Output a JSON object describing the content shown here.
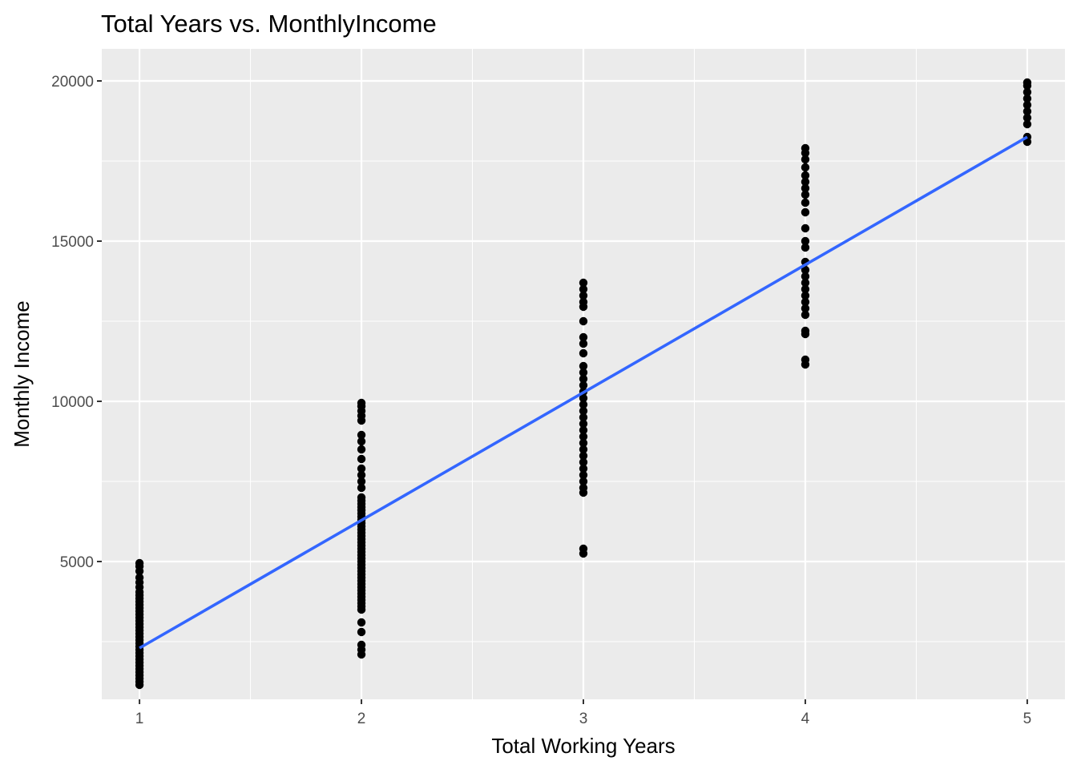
{
  "chart_data": {
    "type": "scatter",
    "title": "Total Years vs. MonthlyIncome",
    "xlabel": "Total Working Years",
    "ylabel": "Monthly Income",
    "xlim": [
      0.83,
      5.17
    ],
    "ylim": [
      700,
      21000
    ],
    "x_ticks": [
      1,
      2,
      3,
      4,
      5
    ],
    "x_tick_labels": [
      "1",
      "2",
      "3",
      "4",
      "5"
    ],
    "x_minor_ticks": [
      1.5,
      2.5,
      3.5,
      4.5
    ],
    "y_ticks": [
      5000,
      10000,
      15000,
      20000
    ],
    "y_tick_labels": [
      "5000",
      "10000",
      "15000",
      "20000"
    ],
    "y_minor_ticks": [
      2500,
      7500,
      12500,
      17500
    ],
    "grid": true,
    "panel_background": "#ebebeb",
    "grid_color": "#ffffff",
    "point_color": "#000000",
    "trend_color": "#3366ff",
    "points": [
      {
        "x": 1,
        "y": 1150
      },
      {
        "x": 1,
        "y": 1250
      },
      {
        "x": 1,
        "y": 1350
      },
      {
        "x": 1,
        "y": 1450
      },
      {
        "x": 1,
        "y": 1550
      },
      {
        "x": 1,
        "y": 1650
      },
      {
        "x": 1,
        "y": 1750
      },
      {
        "x": 1,
        "y": 1850
      },
      {
        "x": 1,
        "y": 1950
      },
      {
        "x": 1,
        "y": 2050
      },
      {
        "x": 1,
        "y": 2150
      },
      {
        "x": 1,
        "y": 2250
      },
      {
        "x": 1,
        "y": 2350
      },
      {
        "x": 1,
        "y": 2450
      },
      {
        "x": 1,
        "y": 2550
      },
      {
        "x": 1,
        "y": 2650
      },
      {
        "x": 1,
        "y": 2750
      },
      {
        "x": 1,
        "y": 2850
      },
      {
        "x": 1,
        "y": 2950
      },
      {
        "x": 1,
        "y": 3050
      },
      {
        "x": 1,
        "y": 3150
      },
      {
        "x": 1,
        "y": 3250
      },
      {
        "x": 1,
        "y": 3350
      },
      {
        "x": 1,
        "y": 3450
      },
      {
        "x": 1,
        "y": 3550
      },
      {
        "x": 1,
        "y": 3650
      },
      {
        "x": 1,
        "y": 3750
      },
      {
        "x": 1,
        "y": 3850
      },
      {
        "x": 1,
        "y": 3950
      },
      {
        "x": 1,
        "y": 4050
      },
      {
        "x": 1,
        "y": 4200
      },
      {
        "x": 1,
        "y": 4350
      },
      {
        "x": 1,
        "y": 4500
      },
      {
        "x": 1,
        "y": 4700
      },
      {
        "x": 1,
        "y": 4850
      },
      {
        "x": 1,
        "y": 4950
      },
      {
        "x": 2,
        "y": 2100
      },
      {
        "x": 2,
        "y": 2250
      },
      {
        "x": 2,
        "y": 2400
      },
      {
        "x": 2,
        "y": 2800
      },
      {
        "x": 2,
        "y": 3100
      },
      {
        "x": 2,
        "y": 3500
      },
      {
        "x": 2,
        "y": 3600
      },
      {
        "x": 2,
        "y": 3700
      },
      {
        "x": 2,
        "y": 3800
      },
      {
        "x": 2,
        "y": 3900
      },
      {
        "x": 2,
        "y": 4000
      },
      {
        "x": 2,
        "y": 4100
      },
      {
        "x": 2,
        "y": 4200
      },
      {
        "x": 2,
        "y": 4300
      },
      {
        "x": 2,
        "y": 4400
      },
      {
        "x": 2,
        "y": 4500
      },
      {
        "x": 2,
        "y": 4600
      },
      {
        "x": 2,
        "y": 4700
      },
      {
        "x": 2,
        "y": 4800
      },
      {
        "x": 2,
        "y": 4900
      },
      {
        "x": 2,
        "y": 5000
      },
      {
        "x": 2,
        "y": 5100
      },
      {
        "x": 2,
        "y": 5200
      },
      {
        "x": 2,
        "y": 5300
      },
      {
        "x": 2,
        "y": 5400
      },
      {
        "x": 2,
        "y": 5500
      },
      {
        "x": 2,
        "y": 5600
      },
      {
        "x": 2,
        "y": 5700
      },
      {
        "x": 2,
        "y": 5800
      },
      {
        "x": 2,
        "y": 5900
      },
      {
        "x": 2,
        "y": 6000
      },
      {
        "x": 2,
        "y": 6100
      },
      {
        "x": 2,
        "y": 6200
      },
      {
        "x": 2,
        "y": 6300
      },
      {
        "x": 2,
        "y": 6400
      },
      {
        "x": 2,
        "y": 6500
      },
      {
        "x": 2,
        "y": 6600
      },
      {
        "x": 2,
        "y": 6700
      },
      {
        "x": 2,
        "y": 6800
      },
      {
        "x": 2,
        "y": 6900
      },
      {
        "x": 2,
        "y": 7000
      },
      {
        "x": 2,
        "y": 7300
      },
      {
        "x": 2,
        "y": 7500
      },
      {
        "x": 2,
        "y": 7700
      },
      {
        "x": 2,
        "y": 7900
      },
      {
        "x": 2,
        "y": 8200
      },
      {
        "x": 2,
        "y": 8500
      },
      {
        "x": 2,
        "y": 8750
      },
      {
        "x": 2,
        "y": 8950
      },
      {
        "x": 2,
        "y": 9400
      },
      {
        "x": 2,
        "y": 9550
      },
      {
        "x": 2,
        "y": 9700
      },
      {
        "x": 2,
        "y": 9850
      },
      {
        "x": 2,
        "y": 9950
      },
      {
        "x": 3,
        "y": 5250
      },
      {
        "x": 3,
        "y": 5400
      },
      {
        "x": 3,
        "y": 7150
      },
      {
        "x": 3,
        "y": 7300
      },
      {
        "x": 3,
        "y": 7500
      },
      {
        "x": 3,
        "y": 7700
      },
      {
        "x": 3,
        "y": 7900
      },
      {
        "x": 3,
        "y": 8100
      },
      {
        "x": 3,
        "y": 8300
      },
      {
        "x": 3,
        "y": 8500
      },
      {
        "x": 3,
        "y": 8700
      },
      {
        "x": 3,
        "y": 8900
      },
      {
        "x": 3,
        "y": 9100
      },
      {
        "x": 3,
        "y": 9300
      },
      {
        "x": 3,
        "y": 9500
      },
      {
        "x": 3,
        "y": 9700
      },
      {
        "x": 3,
        "y": 9900
      },
      {
        "x": 3,
        "y": 10100
      },
      {
        "x": 3,
        "y": 10300
      },
      {
        "x": 3,
        "y": 10500
      },
      {
        "x": 3,
        "y": 10700
      },
      {
        "x": 3,
        "y": 10900
      },
      {
        "x": 3,
        "y": 11100
      },
      {
        "x": 3,
        "y": 11500
      },
      {
        "x": 3,
        "y": 11800
      },
      {
        "x": 3,
        "y": 12000
      },
      {
        "x": 3,
        "y": 12500
      },
      {
        "x": 3,
        "y": 12950
      },
      {
        "x": 3,
        "y": 13100
      },
      {
        "x": 3,
        "y": 13300
      },
      {
        "x": 3,
        "y": 13500
      },
      {
        "x": 3,
        "y": 13700
      },
      {
        "x": 4,
        "y": 11150
      },
      {
        "x": 4,
        "y": 11300
      },
      {
        "x": 4,
        "y": 12100
      },
      {
        "x": 4,
        "y": 12200
      },
      {
        "x": 4,
        "y": 12700
      },
      {
        "x": 4,
        "y": 12900
      },
      {
        "x": 4,
        "y": 13100
      },
      {
        "x": 4,
        "y": 13300
      },
      {
        "x": 4,
        "y": 13500
      },
      {
        "x": 4,
        "y": 13700
      },
      {
        "x": 4,
        "y": 13900
      },
      {
        "x": 4,
        "y": 14100
      },
      {
        "x": 4,
        "y": 14350
      },
      {
        "x": 4,
        "y": 14800
      },
      {
        "x": 4,
        "y": 15000
      },
      {
        "x": 4,
        "y": 15400
      },
      {
        "x": 4,
        "y": 15900
      },
      {
        "x": 4,
        "y": 16200
      },
      {
        "x": 4,
        "y": 16450
      },
      {
        "x": 4,
        "y": 16650
      },
      {
        "x": 4,
        "y": 16850
      },
      {
        "x": 4,
        "y": 17050
      },
      {
        "x": 4,
        "y": 17300
      },
      {
        "x": 4,
        "y": 17550
      },
      {
        "x": 4,
        "y": 17750
      },
      {
        "x": 4,
        "y": 17900
      },
      {
        "x": 5,
        "y": 18100
      },
      {
        "x": 5,
        "y": 18250
      },
      {
        "x": 5,
        "y": 18650
      },
      {
        "x": 5,
        "y": 18850
      },
      {
        "x": 5,
        "y": 19050
      },
      {
        "x": 5,
        "y": 19250
      },
      {
        "x": 5,
        "y": 19450
      },
      {
        "x": 5,
        "y": 19650
      },
      {
        "x": 5,
        "y": 19850
      },
      {
        "x": 5,
        "y": 19950
      }
    ],
    "trend_line": {
      "x": [
        1,
        5
      ],
      "y": [
        2300,
        18250
      ]
    }
  }
}
